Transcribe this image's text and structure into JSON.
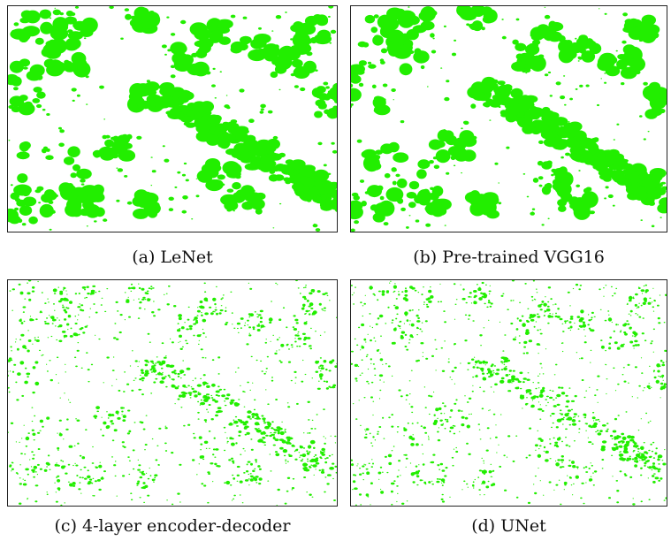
{
  "figure": {
    "colors": {
      "vegetation": "#22ee00",
      "background": "#ffffff",
      "border": "#222222"
    },
    "panels": [
      {
        "id": "a",
        "caption": "(a) LeNet",
        "density": "dense"
      },
      {
        "id": "b",
        "caption": "(b) Pre-trained VGG16",
        "density": "dense"
      },
      {
        "id": "c",
        "caption": "(c) 4-layer encoder-decoder",
        "density": "sparse"
      },
      {
        "id": "d",
        "caption": "(d) UNet",
        "density": "sparse"
      }
    ]
  }
}
